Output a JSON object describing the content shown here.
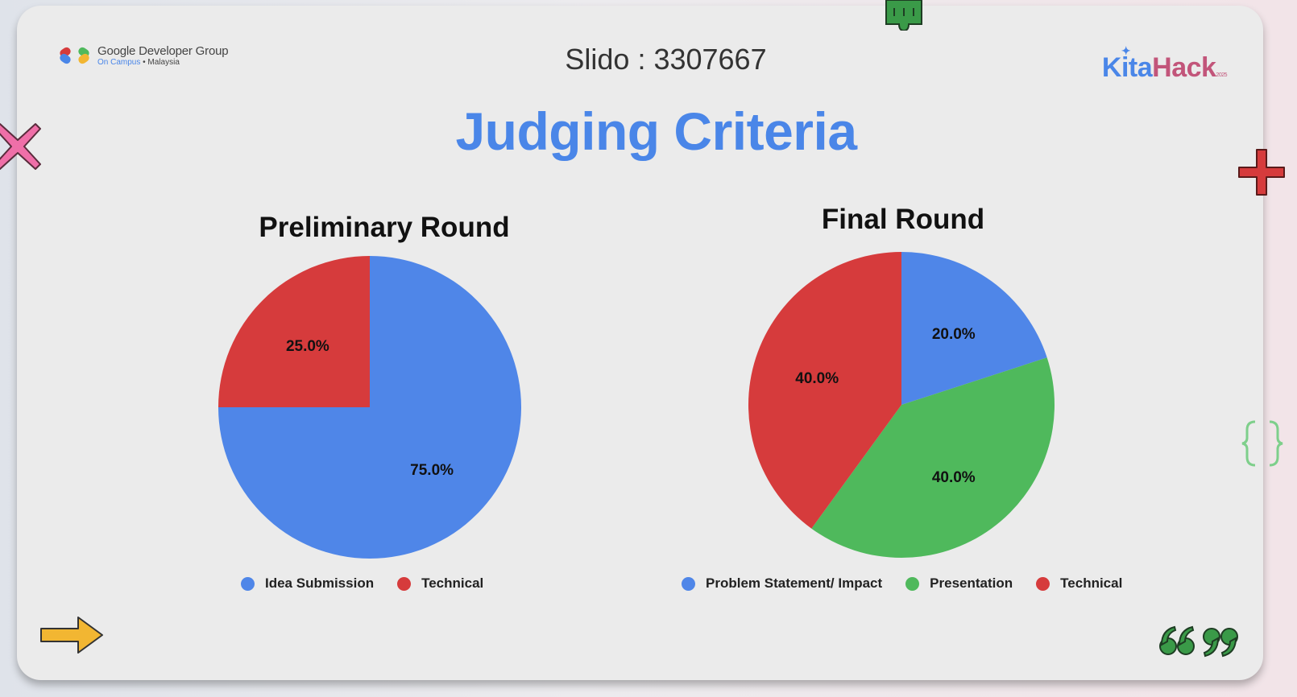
{
  "header": {
    "org_name": "Google Developer Group",
    "org_sub_a": "On Campus",
    "org_sub_b": "• Malaysia",
    "slido": "Slido : 3307667",
    "brand_a": "Kita",
    "brand_b": "Hack",
    "brand_year": "2025"
  },
  "title": "Judging Criteria",
  "colors": {
    "blue": "#4f86e8",
    "red": "#d63b3c",
    "green": "#4fb95c",
    "title_blue": "#4a86e8"
  },
  "chart_data": [
    {
      "type": "pie",
      "title": "Preliminary Round",
      "categories": [
        "Idea Submission",
        "Technical"
      ],
      "values": [
        75.0,
        25.0
      ],
      "labels": [
        "75.0%",
        "25.0%"
      ],
      "legend": "bottom"
    },
    {
      "type": "pie",
      "title": "Final Round",
      "categories": [
        "Problem Statement/ Impact",
        "Presentation",
        "Technical"
      ],
      "values": [
        20.0,
        40.0,
        40.0
      ],
      "labels": [
        "20.0%",
        "40.0%",
        "40.0%"
      ],
      "legend": "bottom"
    }
  ],
  "decorations": [
    "x-icon",
    "plus-icon",
    "braces-icon",
    "puzzle-icon",
    "arrow-right-icon",
    "quote-marks-icon"
  ]
}
